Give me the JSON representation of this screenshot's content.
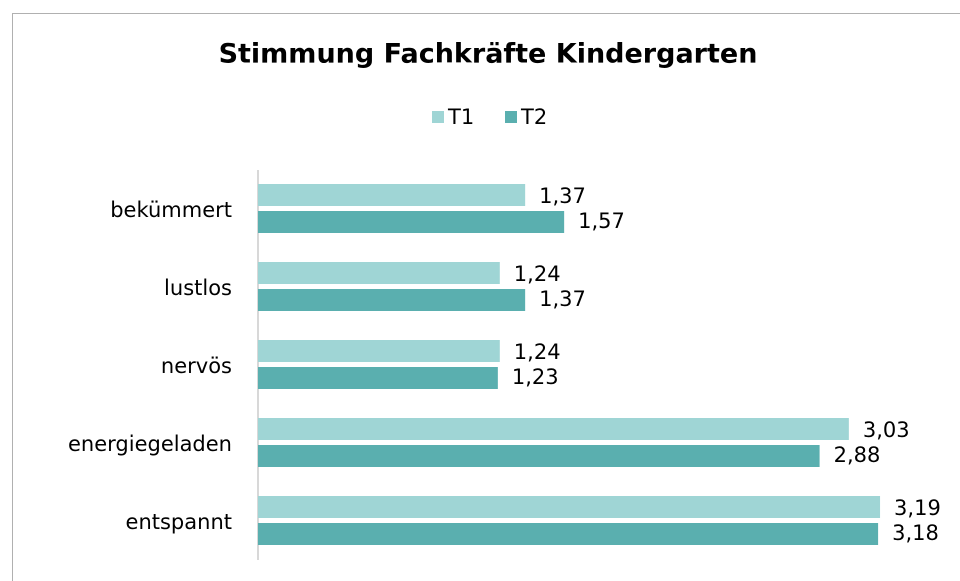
{
  "chart_data": {
    "type": "bar",
    "orientation": "horizontal",
    "title": "Stimmung Fachkräfte Kindergarten",
    "categories": [
      "bekümmert",
      "lustlos",
      "nervös",
      "energiegeladen",
      "entspannt"
    ],
    "series": [
      {
        "name": "T1",
        "color": "#9fd5d5",
        "values": [
          1.37,
          1.24,
          1.24,
          3.03,
          3.19
        ],
        "value_labels": [
          "1,37",
          "1,24",
          "1,24",
          "3,03",
          "3,19"
        ]
      },
      {
        "name": "T2",
        "color": "#5aafaf",
        "values": [
          1.57,
          1.37,
          1.23,
          2.88,
          3.18
        ],
        "value_labels": [
          "1,57",
          "1,37",
          "1,23",
          "2,88",
          "3,18"
        ]
      }
    ],
    "legend": "top"
  }
}
